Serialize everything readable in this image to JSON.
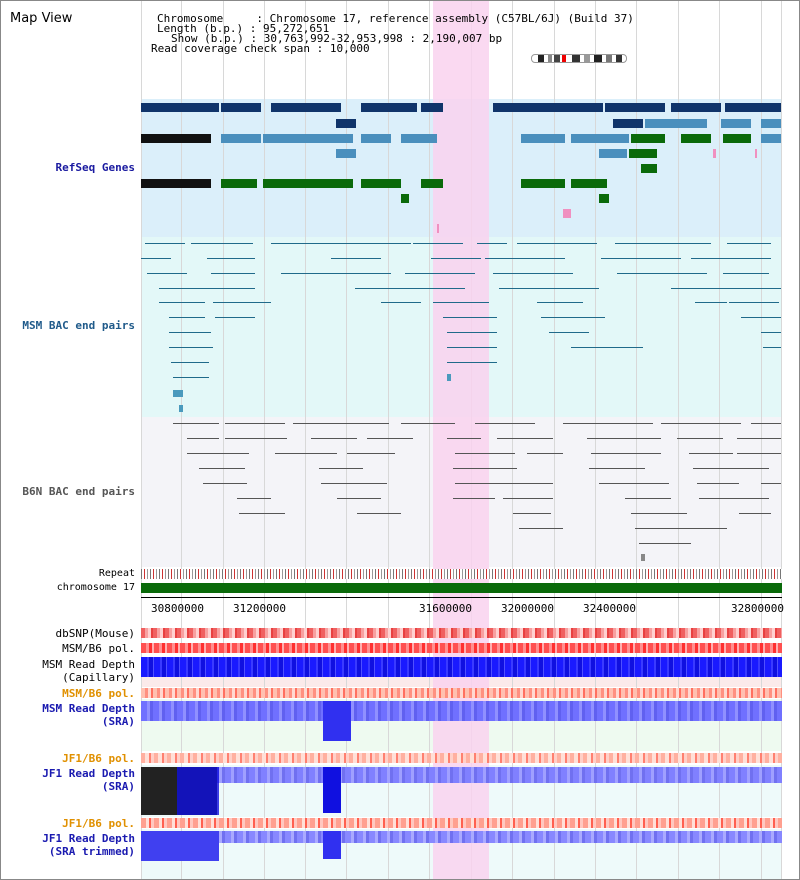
{
  "title": "Map View",
  "info": {
    "chromosome_key": "Chromosome     ",
    "chromosome_value": "Chromosome 17, reference assembly (C57BL/6J) (Build 37)",
    "length_key": "Length (b.p.)",
    "length_value": "95,272,651",
    "show_key": "Show (b.p.)",
    "show_value": "30,763,992-32,953,998 : 2,190,007 bp",
    "span_key": "Read coverage check span",
    "span_value": "10,000"
  },
  "tracks": {
    "refseq": "RefSeq Genes",
    "msm_bac": "MSM BAC end pairs",
    "b6n_bac": "B6N BAC end pairs",
    "repeat": "Repeat",
    "chromosome": "chromosome 17",
    "dbsnp": "dbSNP(Mouse)",
    "msm_b6_pol_1": "MSM/B6 pol.",
    "msm_depth_cap_1": "MSM Read Depth",
    "msm_depth_cap_2": "(Capillary)",
    "msm_b6_pol_2": "MSM/B6 pol.",
    "msm_depth_sra_1": "MSM Read Depth",
    "msm_depth_sra_2": "(SRA)",
    "jf1_b6_pol_1": "JF1/B6 pol.",
    "jf1_depth_sra_1": "JF1 Read Depth",
    "jf1_depth_sra_2": "(SRA)",
    "jf1_b6_pol_2": "JF1/B6 pol.",
    "jf1_depth_trim_1": "JF1 Read Depth",
    "jf1_depth_trim_2": "(SRA trimmed)"
  },
  "axis_ticks": [
    "30800000",
    "31200000",
    "31600000",
    "32000000",
    "32400000",
    "32800000"
  ],
  "colors": {
    "highlight": "#f9d2ee",
    "refseq_bg": "#dbeffa",
    "msm_bg": "#e3f8f8",
    "b6n_bg": "#f4f4f8",
    "gene_dark": "#10346a",
    "gene_mid": "#4a8fbd",
    "gene_green": "#0a6a0a",
    "chrom_bar": "#0a6a0a",
    "msm_label": "#1f5a8a",
    "refseq_label": "#1a1aa0",
    "pol_label": "#e09000",
    "depth_label": "#1a1ab0"
  }
}
